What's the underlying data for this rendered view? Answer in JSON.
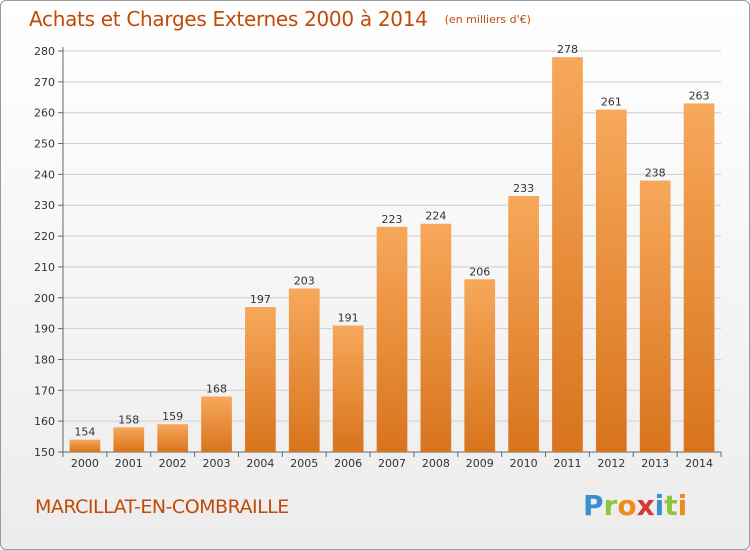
{
  "chart_data": {
    "type": "bar",
    "title": "Achats et Charges Externes 2000 à 2014",
    "subtitle": "(en milliers d'€)",
    "categories": [
      "2000",
      "2001",
      "2002",
      "2003",
      "2004",
      "2005",
      "2006",
      "2007",
      "2008",
      "2009",
      "2010",
      "2011",
      "2012",
      "2013",
      "2014"
    ],
    "values": [
      154,
      158,
      159,
      168,
      197,
      203,
      191,
      223,
      224,
      206,
      233,
      278,
      261,
      238,
      263
    ],
    "ylim": [
      150,
      280
    ],
    "yticks": [
      150,
      160,
      170,
      180,
      190,
      200,
      210,
      220,
      230,
      240,
      250,
      260,
      270,
      280
    ],
    "grid": true,
    "colors": {
      "bar_top": "#f7a85a",
      "bar_bottom": "#d8741d",
      "text": "#c04a08"
    }
  },
  "footer": {
    "commune": "MARCILLAT-EN-COMBRAILLE",
    "logo": "Proxiti"
  }
}
